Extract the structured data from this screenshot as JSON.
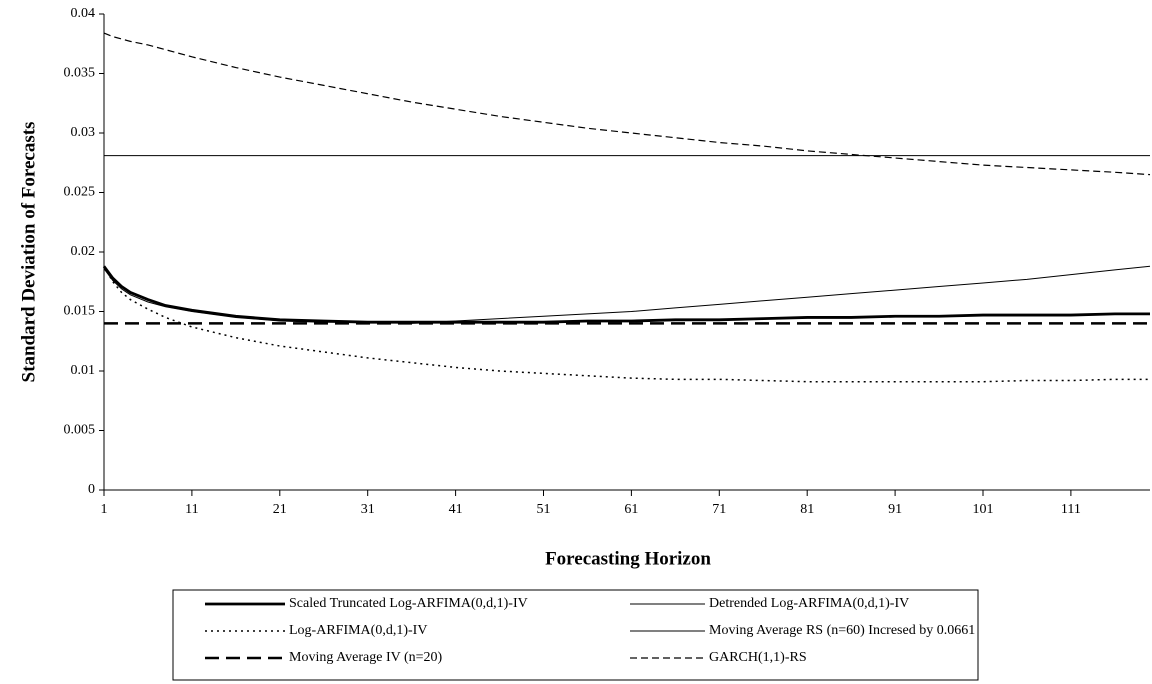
{
  "chart_data": {
    "type": "line",
    "x_label": "Forecasting Horizon",
    "y_label": "Standard Deviation of Forecasts",
    "x": [
      1,
      2,
      3,
      4,
      6,
      8,
      11,
      16,
      21,
      26,
      31,
      36,
      41,
      46,
      51,
      56,
      61,
      66,
      71,
      76,
      81,
      86,
      91,
      96,
      101,
      106,
      111,
      116,
      120
    ],
    "xlim": [
      1,
      120
    ],
    "xticks": [
      1,
      11,
      21,
      31,
      41,
      51,
      61,
      71,
      81,
      91,
      101,
      111
    ],
    "ylim": [
      0,
      0.04
    ],
    "yticks": [
      0,
      0.005,
      0.01,
      0.015,
      0.02,
      0.025,
      0.03,
      0.035,
      0.04
    ],
    "series": [
      {
        "name": "Scaled Truncated Log-ARFIMA(0,d,1)-IV",
        "color": "#000000",
        "width": 2.8,
        "dash": "none",
        "values": [
          0.0188,
          0.0178,
          0.0171,
          0.0166,
          0.016,
          0.0155,
          0.0151,
          0.0146,
          0.0143,
          0.0142,
          0.0141,
          0.0141,
          0.0141,
          0.0141,
          0.0141,
          0.0142,
          0.0142,
          0.0143,
          0.0143,
          0.0144,
          0.0145,
          0.0145,
          0.0146,
          0.0146,
          0.0147,
          0.0147,
          0.0147,
          0.0148,
          0.0148
        ]
      },
      {
        "name": "Detrended Log-ARFIMA(0,d,1)-IV",
        "color": "#000000",
        "width": 1,
        "dash": "none",
        "values": [
          0.0186,
          0.0176,
          0.0169,
          0.0164,
          0.0158,
          0.0154,
          0.015,
          0.0145,
          0.0142,
          0.0141,
          0.0141,
          0.014,
          0.0142,
          0.0144,
          0.0146,
          0.0148,
          0.015,
          0.0153,
          0.0156,
          0.0159,
          0.0162,
          0.0165,
          0.0168,
          0.0171,
          0.0174,
          0.0177,
          0.0181,
          0.0185,
          0.0188
        ]
      },
      {
        "name": "Log-ARFIMA(0,d,1)-IV",
        "color": "#000000",
        "width": 1.5,
        "dash": "2 4",
        "values": [
          0.0188,
          0.0175,
          0.0166,
          0.016,
          0.0152,
          0.0145,
          0.0137,
          0.0128,
          0.0121,
          0.0116,
          0.0111,
          0.0107,
          0.0103,
          0.01,
          0.0098,
          0.0096,
          0.0094,
          0.0093,
          0.0093,
          0.0092,
          0.0091,
          0.0091,
          0.0091,
          0.0091,
          0.0091,
          0.0092,
          0.0092,
          0.0093,
          0.0093
        ]
      },
      {
        "name": "Moving Average RS (n=60) Incresed by 0.0661",
        "color": "#000000",
        "width": 1,
        "dash": "none",
        "values": [
          0.0281,
          0.0281,
          0.0281,
          0.0281,
          0.0281,
          0.0281,
          0.0281,
          0.0281,
          0.0281,
          0.0281,
          0.0281,
          0.0281,
          0.0281,
          0.0281,
          0.0281,
          0.0281,
          0.0281,
          0.0281,
          0.0281,
          0.0281,
          0.0281,
          0.0281,
          0.0281,
          0.0281,
          0.0281,
          0.0281,
          0.0281,
          0.0281,
          0.0281
        ]
      },
      {
        "name": "Moving Average IV (n=20)",
        "color": "#000000",
        "width": 2.5,
        "dash": "14 7",
        "values": [
          0.014,
          0.014,
          0.014,
          0.014,
          0.014,
          0.014,
          0.014,
          0.014,
          0.014,
          0.014,
          0.014,
          0.014,
          0.014,
          0.014,
          0.014,
          0.014,
          0.014,
          0.014,
          0.014,
          0.014,
          0.014,
          0.014,
          0.014,
          0.014,
          0.014,
          0.014,
          0.014,
          0.014,
          0.014
        ]
      },
      {
        "name": "GARCH(1,1)-RS",
        "color": "#000000",
        "width": 1.2,
        "dash": "7 4",
        "values": [
          0.0384,
          0.0381,
          0.0379,
          0.0377,
          0.0374,
          0.037,
          0.0364,
          0.0355,
          0.0347,
          0.034,
          0.0333,
          0.0326,
          0.032,
          0.0314,
          0.0309,
          0.0304,
          0.03,
          0.0296,
          0.0292,
          0.0289,
          0.0285,
          0.0282,
          0.0279,
          0.0276,
          0.0273,
          0.0271,
          0.0269,
          0.0267,
          0.0265
        ]
      }
    ]
  }
}
